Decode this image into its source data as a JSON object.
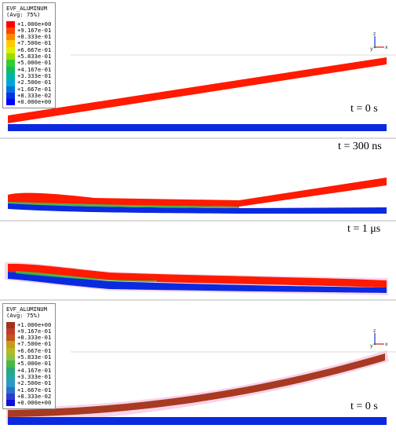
{
  "colors": {
    "legend": [
      "#ff0000",
      "#ff4400",
      "#ff8800",
      "#ffcc00",
      "#ddee00",
      "#99dd00",
      "#33cc33",
      "#11bb66",
      "#00b3a8",
      "#00a6d8",
      "#0070e0",
      "#0030e8",
      "#0000ff"
    ],
    "legend_muted": [
      "#a03418",
      "#c23a2a",
      "#c0541c",
      "#c89a20",
      "#b8b820",
      "#8cc040",
      "#44b848",
      "#2aa878",
      "#22a8a0",
      "#2a98c8",
      "#2a70cc",
      "#2a3cd0",
      "#1010d8"
    ],
    "top_bar": "#ff1a00",
    "bottom_bar": "#0a2ae0",
    "muted_bar": "#a83a22",
    "halo": "#f4b8e0",
    "frame_rule": "#b4b4b4"
  },
  "legend_top": {
    "title": "EVF_ALUMINUM",
    "subtitle": "(Avg: 75%)",
    "values": [
      "+1.000e+00",
      "+9.167e-01",
      "+8.333e-01",
      "+7.500e-01",
      "+6.667e-01",
      "+5.833e-01",
      "+5.000e-01",
      "+4.167e-01",
      "+3.333e-01",
      "+2.500e-01",
      "+1.667e-01",
      "+8.333e-02",
      "+0.000e+00"
    ]
  },
  "legend_bottom": {
    "title": "EVF_ALUMINUM",
    "subtitle": "(Avg: 75%)",
    "values": [
      "+1.000e+00",
      "+9.167e-01",
      "+8.333e-01",
      "+7.500e-01",
      "+6.667e-01",
      "+5.833e-01",
      "+5.000e-01",
      "+4.167e-01",
      "+3.333e-01",
      "+2.500e-01",
      "+1.667e-01",
      "+8.333e-02",
      "+0.000e+00"
    ]
  },
  "time_labels": {
    "frame1": "t = 0 s",
    "frame2": "t = 300 ns",
    "frame3": "t = 1 μs",
    "frame4": "t = 0 s"
  },
  "axes": {
    "z": "z",
    "y": "y",
    "x": "x"
  }
}
